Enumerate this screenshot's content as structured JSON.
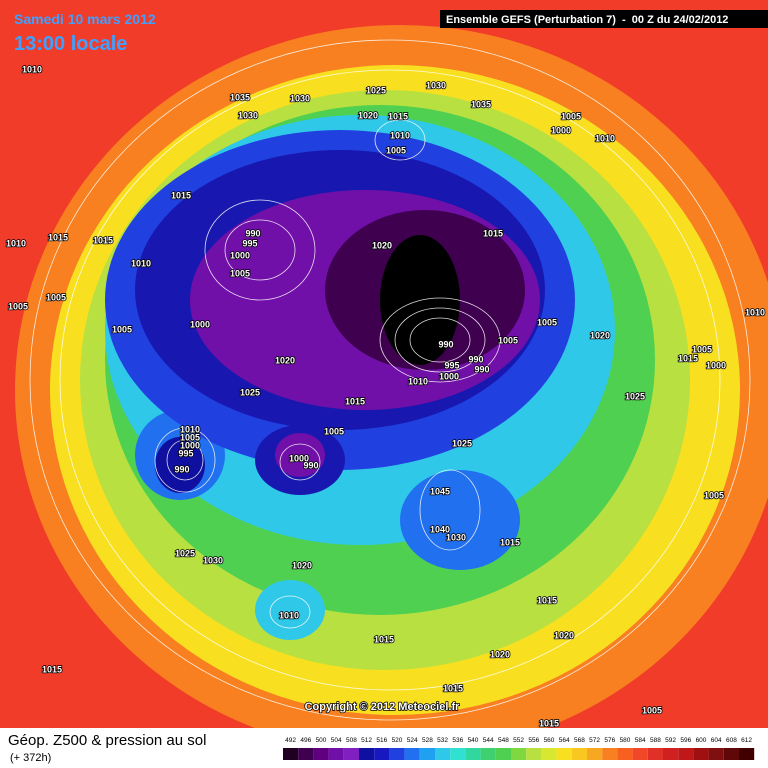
{
  "header": {
    "date": "Samedi 10 mars 2012",
    "time": "13:00 locale",
    "run": "Ensemble GEFS (Perturbation 7)  -  00 Z du 24/02/2012"
  },
  "footer": {
    "title": "Géop. Z500 & pression au sol",
    "lead": "(+ 372h)",
    "copyright": "Copyright © 2012 Meteociel.fr"
  },
  "isobars": [
    1010,
    1035,
    1030,
    1030,
    1025,
    1030,
    1020,
    1015,
    1010,
    1005,
    1035,
    1005,
    1000,
    1010,
    1015,
    1010,
    1015,
    1015,
    990,
    995,
    1000,
    1005,
    1020,
    1015,
    1010,
    1005,
    1005,
    1005,
    1000,
    1005,
    1020,
    990,
    995,
    990,
    990,
    1000,
    1005,
    1010,
    1020,
    1025,
    1015,
    1005,
    1025,
    1010,
    1005,
    1000,
    995,
    990,
    1000,
    990,
    1005,
    1000,
    1015,
    1025,
    1010,
    1005,
    1045,
    1040,
    1030,
    1015,
    1025,
    1030,
    1020,
    1010,
    1015,
    1020,
    1015,
    1020,
    1015,
    1015,
    1005,
    1015
  ],
  "scale": {
    "ticks": [
      492,
      496,
      500,
      504,
      508,
      512,
      516,
      520,
      524,
      528,
      532,
      536,
      540,
      544,
      548,
      552,
      556,
      560,
      564,
      568,
      572,
      576,
      580,
      584,
      588,
      592,
      596,
      600,
      604,
      608,
      612
    ],
    "colors": [
      "#200020",
      "#400050",
      "#600080",
      "#7010a8",
      "#8020c0",
      "#1010a0",
      "#1818c0",
      "#2040e0",
      "#2070f0",
      "#20a0f0",
      "#30c8e8",
      "#30e0d0",
      "#30d8a0",
      "#40d070",
      "#50d050",
      "#80d840",
      "#b8e040",
      "#d8e830",
      "#f8e020",
      "#f8c820",
      "#f8a820",
      "#f88020",
      "#f86020",
      "#f04828",
      "#e03028",
      "#d02020",
      "#c01818",
      "#a01010",
      "#801010",
      "#600808",
      "#400000"
    ]
  }
}
